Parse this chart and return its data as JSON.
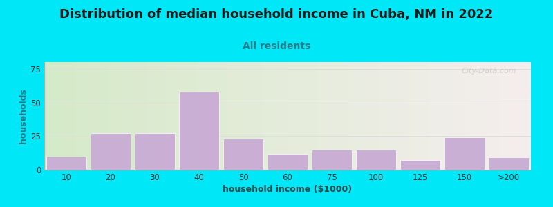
{
  "title": "Distribution of median household income in Cuba, NM in 2022",
  "subtitle": "All residents",
  "xlabel": "household income ($1000)",
  "ylabel": "households",
  "title_fontsize": 13,
  "subtitle_fontsize": 10,
  "label_fontsize": 9,
  "tick_fontsize": 8.5,
  "bar_labels": [
    "10",
    "20",
    "30",
    "40",
    "50",
    "60",
    "75",
    "100",
    "125",
    "150",
    ">200"
  ],
  "bar_values": [
    10,
    27,
    27,
    58,
    23,
    12,
    15,
    15,
    7,
    24,
    9
  ],
  "bar_color": "#c9afd4",
  "bar_edge_color": "#ffffff",
  "background_outer": "#00e8f8",
  "bg_left_color": "#d5eac8",
  "bg_right_color": "#f5eeee",
  "title_color": "#1a1a1a",
  "subtitle_color": "#2a7a8a",
  "ylabel_color": "#2a7a8a",
  "xlabel_color": "#2a4a4a",
  "tick_color": "#333333",
  "grid_color": "#dddddd",
  "watermark": "City-Data.com",
  "ylim": [
    0,
    80
  ],
  "yticks": [
    0,
    25,
    50,
    75
  ]
}
